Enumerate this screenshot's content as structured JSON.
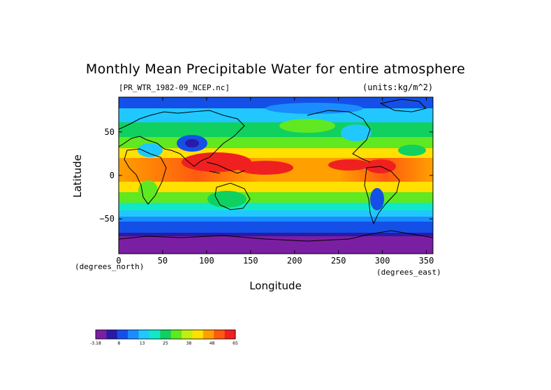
{
  "title": "Monthly Mean Precipitable Water for entire atmosphere",
  "file_label": "[PR_WTR_1982-09_NCEP.nc]",
  "units_label": "(units:kg/m^2)",
  "xlabel": "Longitude",
  "ylabel": "Latitude",
  "x_unit": "(degrees_north)",
  "y_unit": "(degrees_east)",
  "x_ticks": [
    "0",
    "50",
    "100",
    "150",
    "200",
    "250",
    "300",
    "350"
  ],
  "y_ticks": [
    "50",
    "0",
    "−50"
  ],
  "colorbar": {
    "colors": [
      "#7b1fa2",
      "#2a1aa8",
      "#1450e8",
      "#1a8cff",
      "#20c8ff",
      "#10e8c8",
      "#10d060",
      "#60e820",
      "#c0f010",
      "#ffe000",
      "#ffa000",
      "#ff5a10",
      "#f02020"
    ],
    "labels": [
      "-3.18",
      "8",
      "13",
      "25",
      "38",
      "48",
      "65"
    ]
  },
  "map": {
    "type": "heatmap",
    "x_range": [
      0,
      357.5
    ],
    "y_range": [
      -90,
      90
    ],
    "variable": "Precipitable Water",
    "month": "1982-09"
  }
}
